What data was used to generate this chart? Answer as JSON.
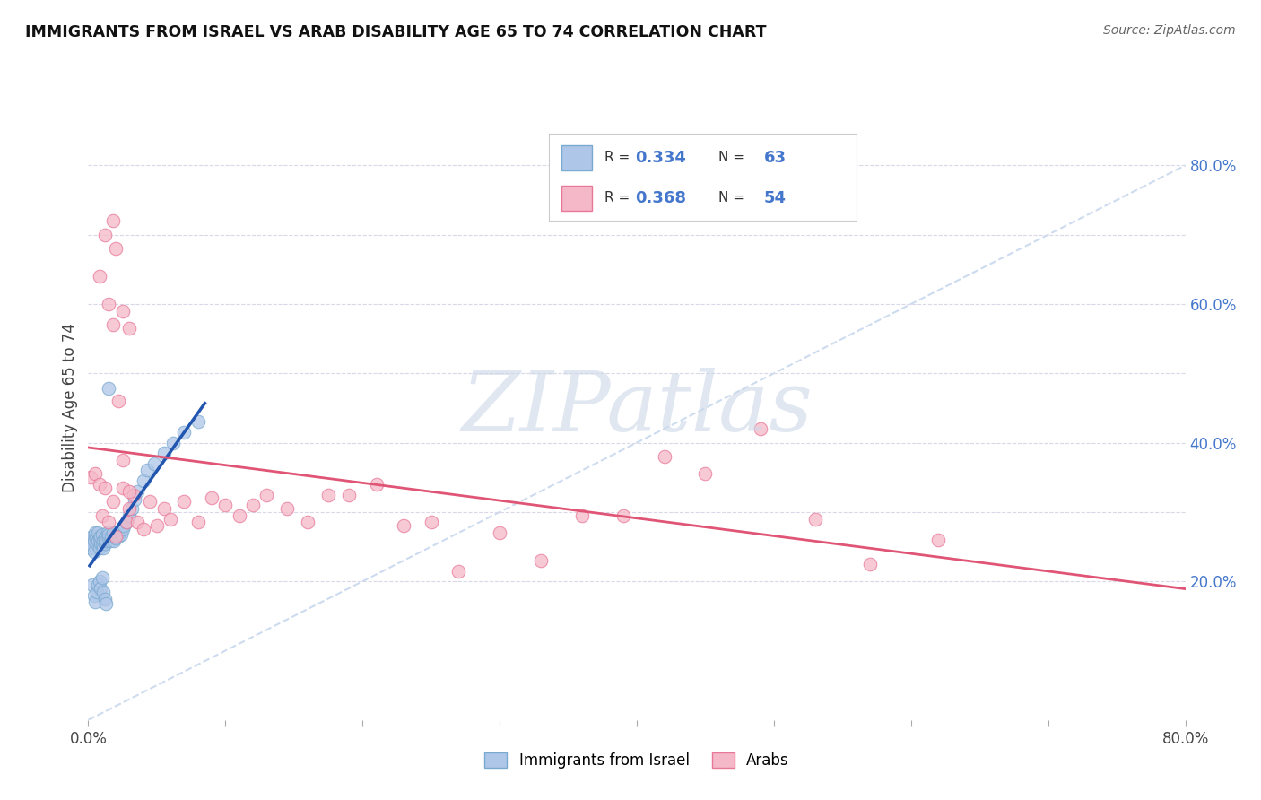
{
  "title": "IMMIGRANTS FROM ISRAEL VS ARAB DISABILITY AGE 65 TO 74 CORRELATION CHART",
  "source": "Source: ZipAtlas.com",
  "ylabel": "Disability Age 65 to 74",
  "xlim": [
    0.0,
    0.8
  ],
  "ylim": [
    0.0,
    0.9
  ],
  "legend1_R": "0.334",
  "legend1_N": "63",
  "legend2_R": "0.368",
  "legend2_N": "54",
  "israel_color": "#aec6e8",
  "arab_color": "#f5b8c8",
  "israel_edge_color": "#7aaacf",
  "arab_edge_color": "#e87898",
  "israel_line_color": "#2255b0",
  "arab_line_color": "#e05575",
  "diagonal_color": "#c8d8ee",
  "grid_color": "#d8d8e8",
  "background_color": "#ffffff",
  "legend_text_color": "#4477cc",
  "watermark_color": "#ccd8e8",
  "israel_label": "Immigrants from Israel",
  "arab_label": "Arabs",
  "israel_x": [
    0.001,
    0.002,
    0.002,
    0.003,
    0.003,
    0.004,
    0.004,
    0.005,
    0.005,
    0.006,
    0.006,
    0.007,
    0.007,
    0.008,
    0.008,
    0.009,
    0.009,
    0.01,
    0.01,
    0.011,
    0.011,
    0.012,
    0.012,
    0.013,
    0.013,
    0.014,
    0.015,
    0.015,
    0.016,
    0.017,
    0.018,
    0.019,
    0.02,
    0.021,
    0.022,
    0.023,
    0.024,
    0.025,
    0.026,
    0.028,
    0.03,
    0.032,
    0.034,
    0.036,
    0.04,
    0.043,
    0.048,
    0.055,
    0.062,
    0.07,
    0.08,
    0.003,
    0.004,
    0.005,
    0.006,
    0.007,
    0.008,
    0.009,
    0.01,
    0.011,
    0.012,
    0.013,
    0.015
  ],
  "israel_y": [
    0.255,
    0.26,
    0.248,
    0.252,
    0.265,
    0.258,
    0.243,
    0.265,
    0.27,
    0.255,
    0.262,
    0.258,
    0.27,
    0.248,
    0.262,
    0.255,
    0.265,
    0.252,
    0.268,
    0.258,
    0.248,
    0.262,
    0.255,
    0.265,
    0.258,
    0.27,
    0.262,
    0.268,
    0.258,
    0.265,
    0.27,
    0.258,
    0.262,
    0.268,
    0.265,
    0.272,
    0.268,
    0.275,
    0.28,
    0.285,
    0.295,
    0.305,
    0.318,
    0.33,
    0.345,
    0.36,
    0.37,
    0.385,
    0.4,
    0.415,
    0.43,
    0.195,
    0.18,
    0.17,
    0.185,
    0.195,
    0.2,
    0.19,
    0.205,
    0.185,
    0.175,
    0.168,
    0.478
  ],
  "arab_x": [
    0.002,
    0.005,
    0.008,
    0.01,
    0.012,
    0.015,
    0.018,
    0.02,
    0.025,
    0.028,
    0.03,
    0.033,
    0.036,
    0.04,
    0.045,
    0.05,
    0.055,
    0.06,
    0.07,
    0.08,
    0.09,
    0.1,
    0.11,
    0.12,
    0.13,
    0.145,
    0.16,
    0.175,
    0.19,
    0.21,
    0.23,
    0.25,
    0.27,
    0.3,
    0.33,
    0.36,
    0.39,
    0.42,
    0.45,
    0.49,
    0.53,
    0.57,
    0.62,
    0.008,
    0.012,
    0.015,
    0.018,
    0.022,
    0.025,
    0.03,
    0.02,
    0.018,
    0.025,
    0.03
  ],
  "arab_y": [
    0.35,
    0.355,
    0.34,
    0.295,
    0.335,
    0.285,
    0.315,
    0.265,
    0.335,
    0.285,
    0.305,
    0.325,
    0.285,
    0.275,
    0.315,
    0.28,
    0.305,
    0.29,
    0.315,
    0.285,
    0.32,
    0.31,
    0.295,
    0.31,
    0.325,
    0.305,
    0.285,
    0.325,
    0.325,
    0.34,
    0.28,
    0.285,
    0.215,
    0.27,
    0.23,
    0.295,
    0.295,
    0.38,
    0.355,
    0.42,
    0.29,
    0.225,
    0.26,
    0.64,
    0.7,
    0.6,
    0.57,
    0.46,
    0.375,
    0.33,
    0.68,
    0.72,
    0.59,
    0.565
  ]
}
